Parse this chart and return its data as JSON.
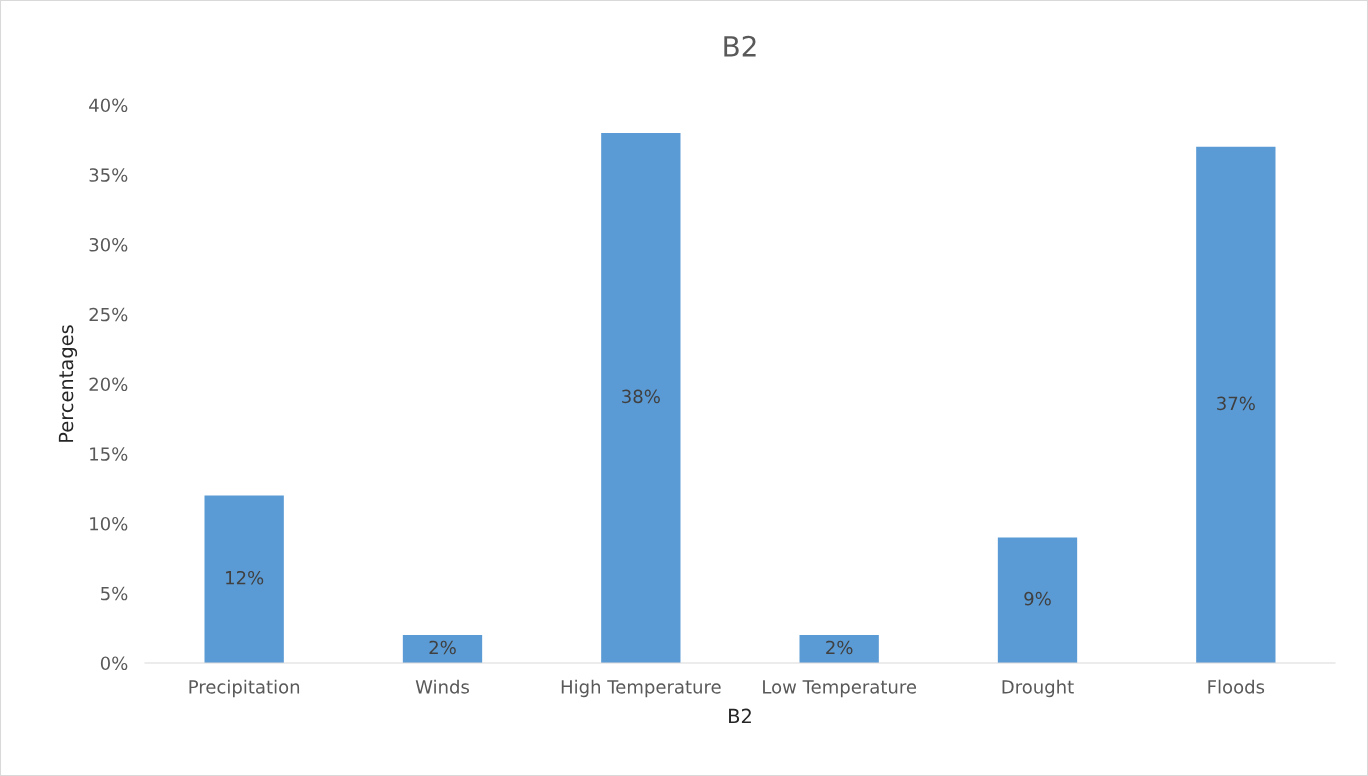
{
  "chart_data": {
    "type": "bar",
    "title": "B2",
    "xlabel": "B2",
    "ylabel": "Percentages",
    "categories": [
      "Precipitation",
      "Winds",
      "High Temperature",
      "Low Temperature",
      "Drought",
      "Floods"
    ],
    "values": [
      12,
      2,
      38,
      2,
      9,
      37
    ],
    "value_labels": [
      "12%",
      "2%",
      "38%",
      "2%",
      "9%",
      "37%"
    ],
    "color": "#5b9bd5",
    "ylim": [
      0,
      40
    ],
    "yticks": [
      {
        "value": 0,
        "label": "0%"
      },
      {
        "value": 5,
        "label": "5%"
      },
      {
        "value": 10,
        "label": "10%"
      },
      {
        "value": 15,
        "label": "15%"
      },
      {
        "value": 20,
        "label": "20%"
      },
      {
        "value": 25,
        "label": "25%"
      },
      {
        "value": 30,
        "label": "30%"
      },
      {
        "value": 35,
        "label": "35%"
      },
      {
        "value": 40,
        "label": "40%"
      }
    ],
    "grid": false,
    "legend": false
  }
}
